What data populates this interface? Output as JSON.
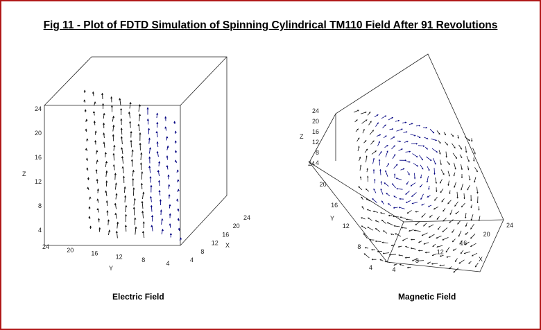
{
  "title": "Fig 11 - Plot of FDTD Simulation of Spinning Cylindrical TM110 Field After 91 Revolutions",
  "chart_data": [
    {
      "type": "vector-field-3d",
      "caption": "Electric Field",
      "axes": {
        "z": {
          "label": "Z",
          "ticks": [
            "4",
            "8",
            "12",
            "16",
            "20",
            "24"
          ]
        },
        "y": {
          "label": "Y",
          "ticks": [
            "24",
            "20",
            "16",
            "12",
            "8",
            "4"
          ]
        },
        "x": {
          "label": "X",
          "ticks": [
            "4",
            "8",
            "12",
            "16",
            "20",
            "24"
          ]
        }
      },
      "vector_color": "#000080",
      "grid": false
    },
    {
      "type": "vector-field-3d",
      "caption": "Magnetic Field",
      "axes": {
        "z": {
          "label": "Z",
          "ticks": [
            "4",
            "8",
            "12",
            "16",
            "20",
            "24"
          ]
        },
        "y": {
          "label": "Y",
          "ticks": [
            "4",
            "8",
            "12",
            "16",
            "20",
            "24"
          ]
        },
        "x": {
          "label": "X",
          "ticks": [
            "4",
            "8",
            "12",
            "16",
            "20",
            "24"
          ]
        }
      },
      "vector_color": "#000080",
      "grid": false
    }
  ],
  "colors": {
    "frame": "#b01818",
    "vectors": "#000080"
  }
}
